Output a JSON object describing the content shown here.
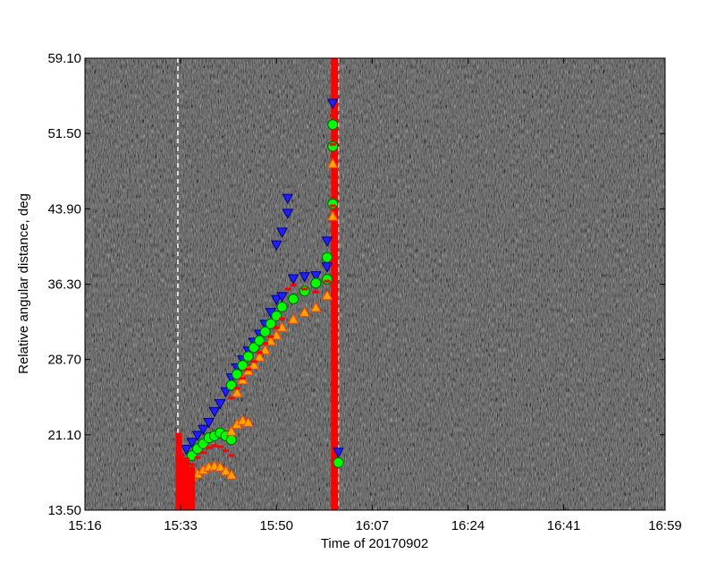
{
  "chart_data": {
    "type": "scatter",
    "title": "",
    "xlabel": "Time of 20170902",
    "ylabel": "Relative angular distance, deg",
    "x_tick_labels": [
      "15:16",
      "15:33",
      "15:50",
      "16:07",
      "16:24",
      "16:41",
      "16:59"
    ],
    "y_tick_labels": [
      "13.50",
      "21.10",
      "28.70",
      "36.30",
      "43.90",
      "51.50",
      "59.10"
    ],
    "xlim": [
      "15:16",
      "16:59"
    ],
    "ylim": [
      13.5,
      59.1
    ],
    "background": "grayscale running-difference noise image",
    "vertical_markers": [
      {
        "x": "15:32:30",
        "style": "dashed",
        "color": "#ffffff"
      },
      {
        "x": "16:01:00",
        "style": "dashed",
        "color": "#ffffff"
      },
      {
        "x": "16:00:20",
        "style": "solid-thick",
        "color": "#ff0000"
      }
    ],
    "colors": {
      "down_triangle_fill": "#2020ff",
      "down_triangle_edge": "#000080",
      "circle_fill": "#00ff00",
      "circle_edge": "#006400",
      "up_triangle_fill": "#ffa500",
      "up_triangle_edge": "#ff4500",
      "dash_marker": "#ff0000"
    },
    "series": [
      {
        "marker": "down-triangle",
        "points": [
          [
            "15:34",
            19.6
          ],
          [
            "15:35",
            20.3
          ],
          [
            "15:36",
            21.0
          ],
          [
            "15:37",
            21.6
          ],
          [
            "15:38",
            22.3
          ],
          [
            "15:39",
            23.4
          ],
          [
            "15:40",
            24.2
          ],
          [
            "15:41",
            25.4
          ],
          [
            "15:42",
            26.8
          ],
          [
            "15:43",
            27.8
          ],
          [
            "15:44",
            28.6
          ],
          [
            "15:45",
            29.5
          ],
          [
            "15:46",
            30.4
          ],
          [
            "15:47",
            31.2
          ],
          [
            "15:48",
            32.2
          ],
          [
            "15:49",
            33.4
          ],
          [
            "15:50",
            34.7
          ],
          [
            "15:51",
            35.0
          ],
          [
            "15:50",
            40.2
          ],
          [
            "15:51",
            41.5
          ],
          [
            "15:52",
            43.4
          ],
          [
            "15:52",
            44.9
          ],
          [
            "15:53",
            36.8
          ],
          [
            "15:55",
            37.0
          ],
          [
            "15:57",
            37.1
          ],
          [
            "15:59",
            38.0
          ],
          [
            "15:59",
            40.6
          ],
          [
            "16:00",
            54.5
          ],
          [
            "16:01",
            19.3
          ]
        ]
      },
      {
        "marker": "circle",
        "points": [
          [
            "15:34",
            17.9
          ],
          [
            "15:35",
            19.0
          ],
          [
            "15:36",
            19.7
          ],
          [
            "15:37",
            20.2
          ],
          [
            "15:38",
            20.8
          ],
          [
            "15:39",
            21.0
          ],
          [
            "15:40",
            21.3
          ],
          [
            "15:41",
            21.0
          ],
          [
            "15:42",
            20.6
          ],
          [
            "15:42",
            26.1
          ],
          [
            "15:43",
            27.2
          ],
          [
            "15:44",
            28.1
          ],
          [
            "15:45",
            29.0
          ],
          [
            "15:46",
            29.9
          ],
          [
            "15:47",
            30.6
          ],
          [
            "15:48",
            31.5
          ],
          [
            "15:49",
            32.3
          ],
          [
            "15:50",
            33.1
          ],
          [
            "15:51",
            34.0
          ],
          [
            "15:53",
            34.8
          ],
          [
            "15:55",
            35.6
          ],
          [
            "15:57",
            36.4
          ],
          [
            "15:59",
            36.8
          ],
          [
            "15:59",
            39.0
          ],
          [
            "16:00",
            44.4
          ],
          [
            "16:00",
            50.2
          ],
          [
            "16:00",
            52.4
          ],
          [
            "16:01",
            18.3
          ]
        ]
      },
      {
        "marker": "up-triangle",
        "points": [
          [
            "15:34",
            16.2
          ],
          [
            "15:35",
            16.9
          ],
          [
            "15:36",
            17.2
          ],
          [
            "15:37",
            17.6
          ],
          [
            "15:38",
            17.9
          ],
          [
            "15:39",
            18.0
          ],
          [
            "15:40",
            17.9
          ],
          [
            "15:41",
            17.5
          ],
          [
            "15:42",
            17.1
          ],
          [
            "15:42",
            21.5
          ],
          [
            "15:43",
            22.2
          ],
          [
            "15:44",
            22.6
          ],
          [
            "15:45",
            22.4
          ],
          [
            "15:43",
            25.4
          ],
          [
            "15:44",
            26.7
          ],
          [
            "15:45",
            27.6
          ],
          [
            "15:46",
            28.2
          ],
          [
            "15:47",
            29.0
          ],
          [
            "15:48",
            29.7
          ],
          [
            "15:49",
            30.6
          ],
          [
            "15:50",
            31.2
          ],
          [
            "15:51",
            32.0
          ],
          [
            "15:53",
            32.8
          ],
          [
            "15:55",
            33.5
          ],
          [
            "15:57",
            34.0
          ],
          [
            "15:59",
            35.2
          ],
          [
            "16:00",
            43.2
          ],
          [
            "16:00",
            48.5
          ]
        ]
      },
      {
        "marker": "red-dash",
        "points": [
          [
            "15:34",
            17.0
          ],
          [
            "15:35",
            18.1
          ],
          [
            "15:36",
            18.8
          ],
          [
            "15:37",
            19.3
          ],
          [
            "15:38",
            19.8
          ],
          [
            "15:39",
            20.0
          ],
          [
            "15:40",
            19.9
          ],
          [
            "15:41",
            19.5
          ],
          [
            "15:42",
            19.0
          ],
          [
            "15:42",
            24.8
          ],
          [
            "15:43",
            25.8
          ],
          [
            "15:44",
            26.8
          ],
          [
            "15:45",
            27.7
          ],
          [
            "15:46",
            28.5
          ],
          [
            "15:47",
            29.4
          ],
          [
            "15:48",
            30.3
          ],
          [
            "15:49",
            31.0
          ],
          [
            "15:50",
            31.9
          ],
          [
            "15:51",
            32.8
          ],
          [
            "15:52",
            35.8
          ],
          [
            "15:53",
            36.2
          ],
          [
            "15:55",
            35.8
          ],
          [
            "15:57",
            35.5
          ],
          [
            "15:59",
            36.6
          ],
          [
            "16:00",
            38.6
          ],
          [
            "16:00",
            44.2
          ],
          [
            "16:00",
            50.4
          ],
          [
            "16:00",
            53.3
          ]
        ]
      },
      {
        "marker": "red-bars",
        "points": [
          [
            "15:32:40",
            21.3
          ],
          [
            "15:33:00",
            19.3
          ],
          [
            "15:33:20",
            18.6
          ],
          [
            "15:33:40",
            17.9
          ],
          [
            "15:34:00",
            18.8
          ],
          [
            "15:34:20",
            17.4
          ],
          [
            "15:34:40",
            16.9
          ],
          [
            "15:35:00",
            17.9
          ]
        ]
      }
    ]
  }
}
